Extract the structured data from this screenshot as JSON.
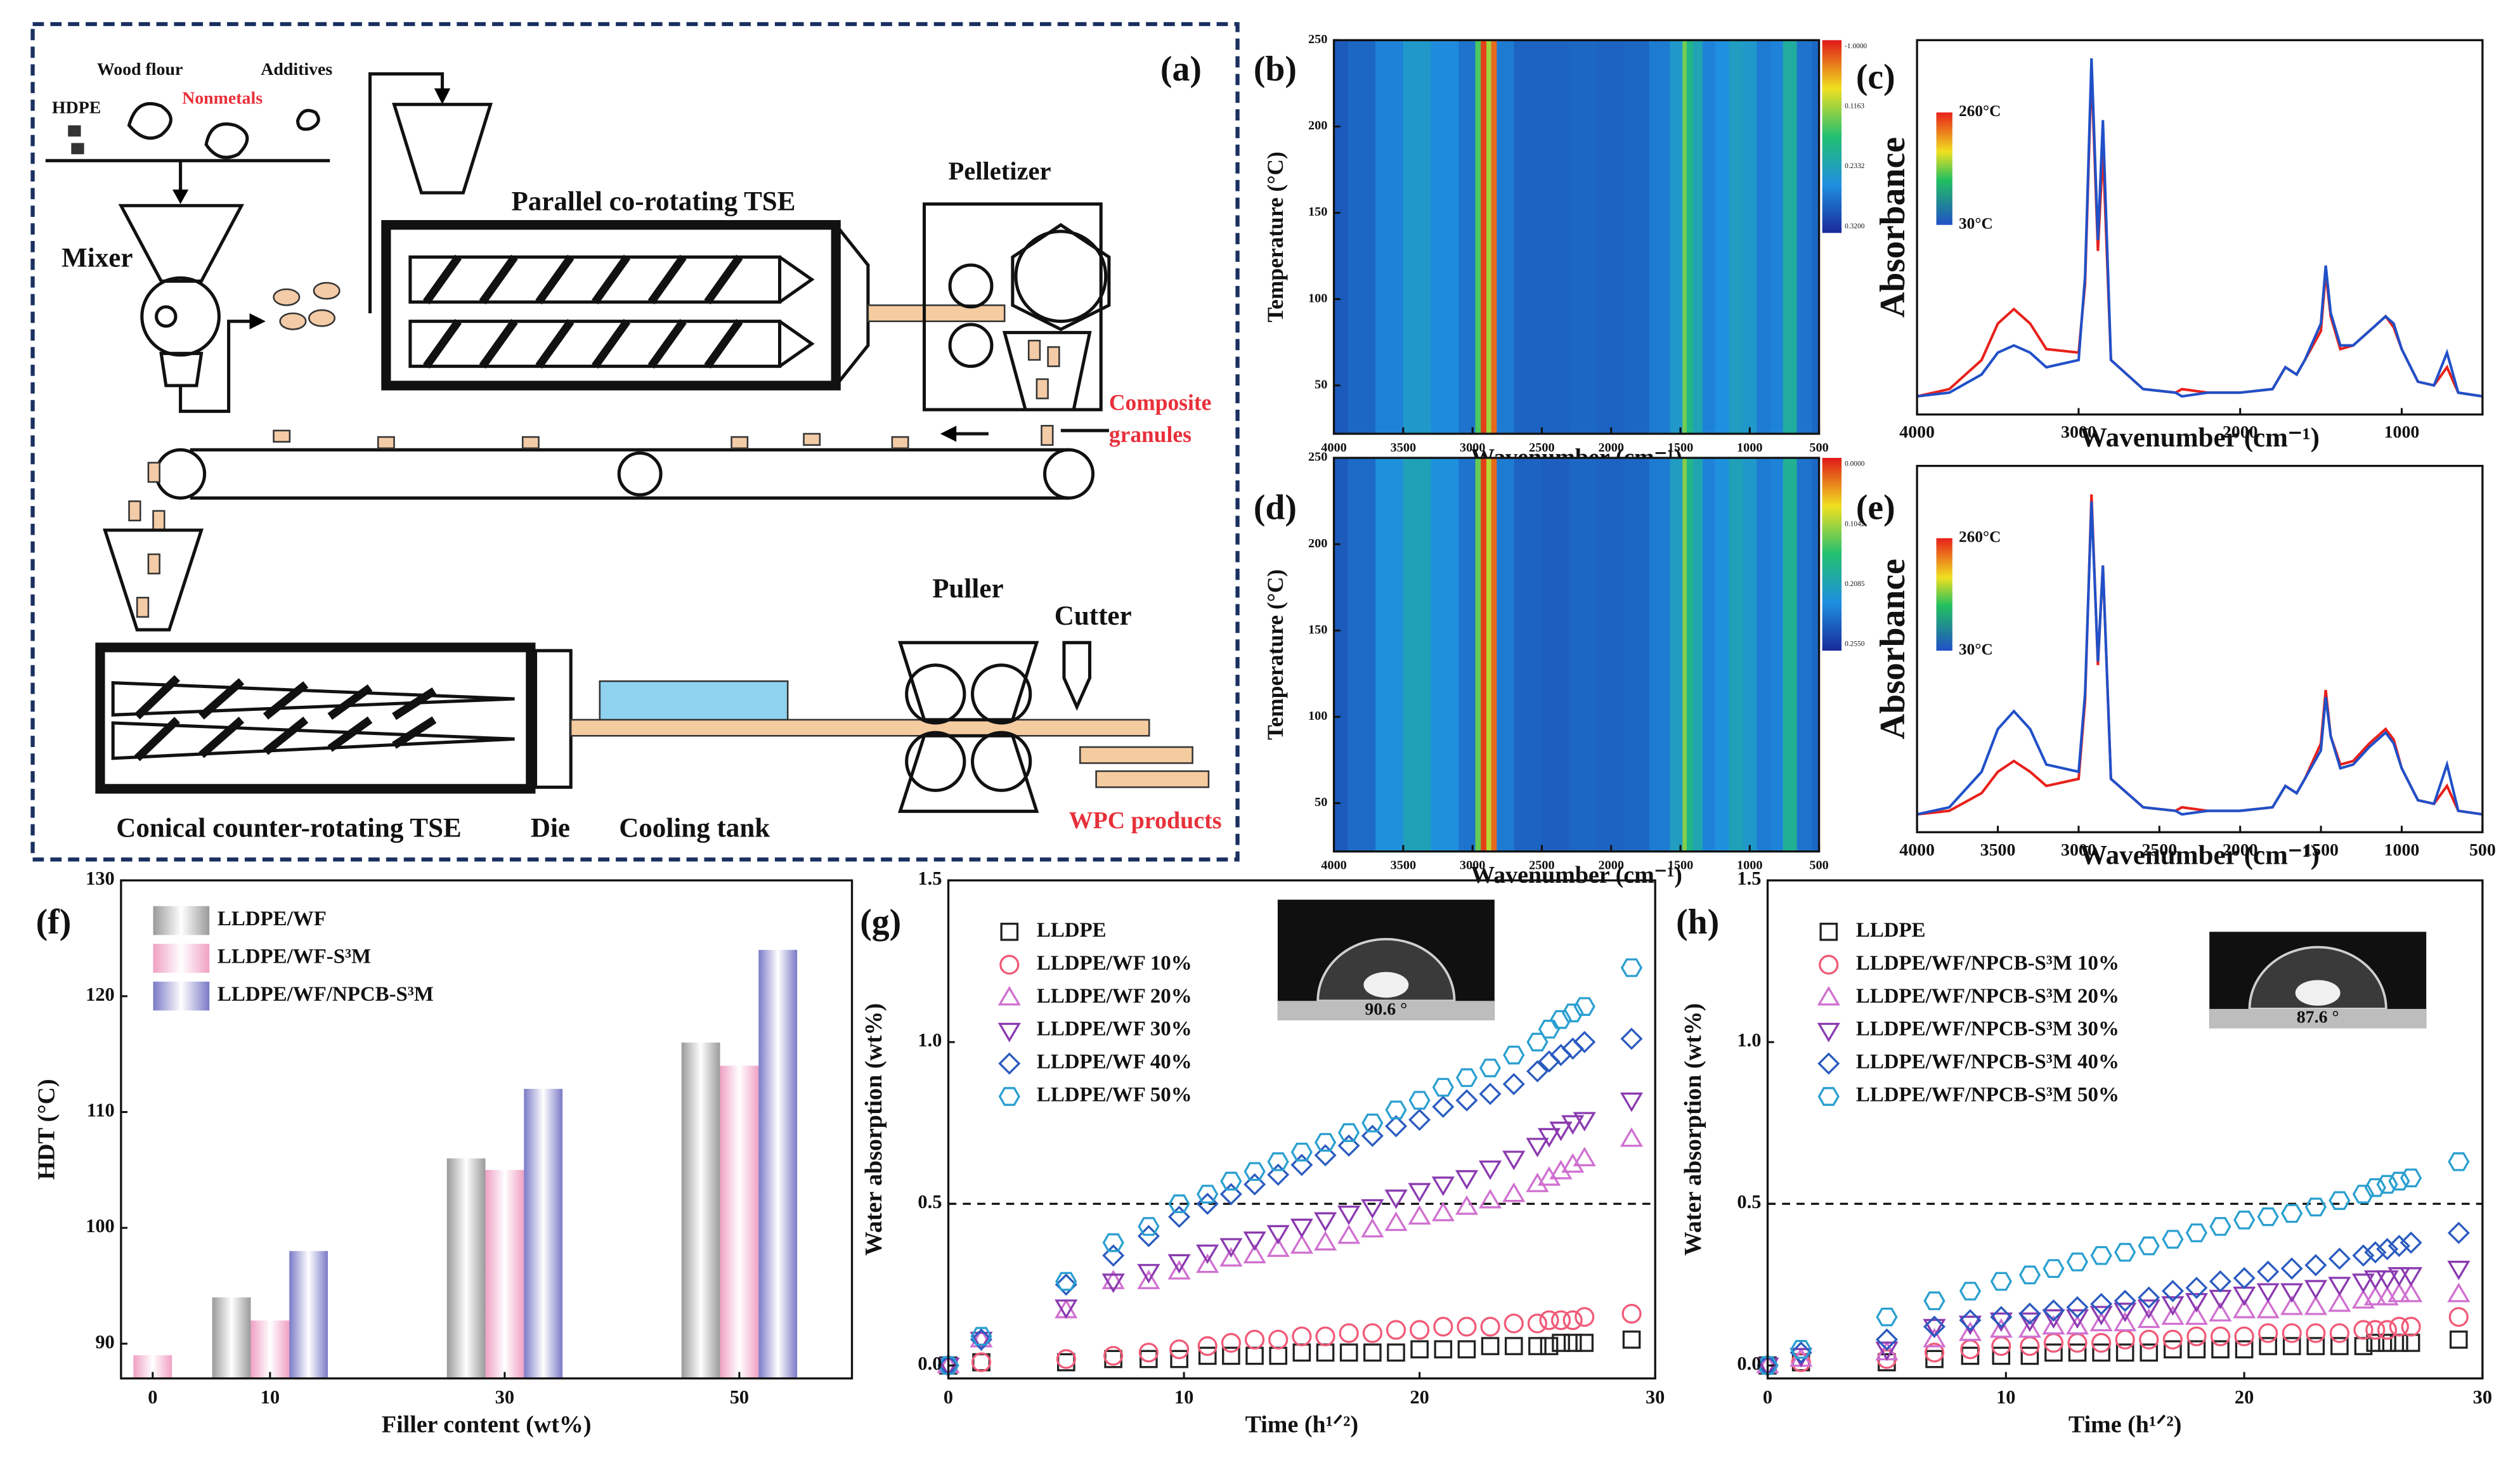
{
  "diagram": {
    "label": "(a)",
    "labels": [
      "HDPE",
      "Wood flour",
      "Nonmetals",
      "Additives",
      "Mixer",
      "Parallel co-rotating TSE",
      "Pelletizer",
      "Composite",
      "granules",
      "Conical counter-rotating TSE",
      "Die",
      "Cooling tank",
      "Puller",
      "Cutter",
      "WPC products"
    ]
  },
  "chart_data": [
    {
      "type": "heatmap",
      "label": "(b)",
      "xlabel": "Wavenumber (cm⁻¹)",
      "ylabel": "Temperature (°C)",
      "x": [
        4000,
        3800,
        3600,
        3400,
        3200,
        3000,
        2960,
        2920,
        2880,
        2850,
        2800,
        2600,
        2400,
        2200,
        2000,
        1800,
        1650,
        1500,
        1470,
        1440,
        1380,
        1300,
        1200,
        1100,
        1000,
        900,
        800,
        720,
        600,
        500
      ],
      "values": [
        0.12,
        0.15,
        0.22,
        0.3,
        0.24,
        0.18,
        0.55,
        0.95,
        0.65,
        0.9,
        0.2,
        0.14,
        0.14,
        0.15,
        0.14,
        0.15,
        0.2,
        0.3,
        0.6,
        0.45,
        0.35,
        0.22,
        0.25,
        0.32,
        0.3,
        0.2,
        0.22,
        0.4,
        0.18,
        0.15
      ],
      "zlim": [
        0,
        1
      ],
      "colorscale": [
        "#1a2a9a",
        "#1f8fe0",
        "#22c070",
        "#f0e020",
        "#e01818"
      ],
      "colorbar_labels": [
        "-1.0000",
        "0.1163",
        "0.2332",
        "0.3200"
      ],
      "xlim": [
        4000,
        500
      ],
      "xticks": [
        4000,
        3500,
        3000,
        2500,
        2000,
        1500,
        1000,
        500
      ],
      "ylim": [
        22,
        250
      ],
      "yticks": [
        50,
        100,
        150,
        200,
        250
      ]
    },
    {
      "type": "line",
      "label": "(c)",
      "xlabel": "Wavenumber (cm⁻¹)",
      "ylabel": "Absorbance",
      "x": [
        4000,
        3800,
        3600,
        3500,
        3400,
        3300,
        3200,
        3000,
        2960,
        2920,
        2880,
        2850,
        2800,
        2600,
        2400,
        2360,
        2200,
        2000,
        1800,
        1720,
        1650,
        1600,
        1500,
        1470,
        1440,
        1380,
        1300,
        1200,
        1100,
        1050,
        1000,
        900,
        800,
        720,
        650,
        500
      ],
      "series": [
        {
          "name": "260°C",
          "color": "#e8201a",
          "values": [
            0.02,
            0.04,
            0.12,
            0.22,
            0.26,
            0.22,
            0.15,
            0.14,
            0.33,
            0.92,
            0.42,
            0.7,
            0.12,
            0.04,
            0.03,
            0.04,
            0.03,
            0.03,
            0.04,
            0.1,
            0.08,
            0.12,
            0.2,
            0.36,
            0.24,
            0.15,
            0.16,
            0.2,
            0.24,
            0.21,
            0.15,
            0.06,
            0.05,
            0.1,
            0.03,
            0.02
          ]
        },
        {
          "name": "30°C",
          "color": "#2050c8",
          "values": [
            0.02,
            0.03,
            0.08,
            0.14,
            0.16,
            0.14,
            0.1,
            0.12,
            0.35,
            0.95,
            0.45,
            0.78,
            0.12,
            0.04,
            0.03,
            0.02,
            0.03,
            0.03,
            0.04,
            0.1,
            0.08,
            0.12,
            0.22,
            0.38,
            0.25,
            0.16,
            0.16,
            0.2,
            0.24,
            0.22,
            0.15,
            0.06,
            0.05,
            0.14,
            0.03,
            0.02
          ]
        }
      ],
      "xlim": [
        4000,
        500
      ],
      "xticks": [
        4000,
        3000,
        2000,
        1000
      ],
      "ylim": [
        -0.03,
        1.0
      ]
    },
    {
      "type": "heatmap",
      "label": "(d)",
      "xlabel": "Wavenumber (cm⁻¹)",
      "ylabel": "Temperature (°C)",
      "x": [
        4000,
        3800,
        3600,
        3400,
        3200,
        3000,
        2960,
        2920,
        2880,
        2850,
        2800,
        2600,
        2400,
        2200,
        2000,
        1800,
        1650,
        1500,
        1470,
        1440,
        1380,
        1300,
        1200,
        1100,
        1000,
        900,
        800,
        720,
        600,
        500
      ],
      "values": [
        0.12,
        0.16,
        0.26,
        0.34,
        0.26,
        0.18,
        0.58,
        0.95,
        0.68,
        0.9,
        0.2,
        0.14,
        0.13,
        0.15,
        0.14,
        0.15,
        0.2,
        0.32,
        0.62,
        0.45,
        0.36,
        0.22,
        0.26,
        0.34,
        0.3,
        0.2,
        0.22,
        0.42,
        0.18,
        0.15
      ],
      "zlim": [
        0,
        1
      ],
      "colorscale": [
        "#1a2a9a",
        "#1f8fe0",
        "#22c070",
        "#f0e020",
        "#e01818"
      ],
      "colorbar_labels": [
        "0.0000",
        "0.1042",
        "0.2085",
        "0.2550"
      ],
      "xlim": [
        4000,
        500
      ],
      "xticks": [
        4000,
        3500,
        3000,
        2500,
        2000,
        1500,
        1000,
        500
      ],
      "ylim": [
        22,
        250
      ],
      "yticks": [
        50,
        100,
        150,
        200,
        250
      ]
    },
    {
      "type": "line",
      "label": "(e)",
      "xlabel": "Wavenumber (cm⁻¹)",
      "ylabel": "Absorbance",
      "x": [
        4000,
        3800,
        3600,
        3500,
        3400,
        3300,
        3200,
        3000,
        2960,
        2920,
        2880,
        2850,
        2800,
        2600,
        2400,
        2360,
        2200,
        2000,
        1800,
        1720,
        1650,
        1600,
        1500,
        1470,
        1440,
        1380,
        1300,
        1200,
        1100,
        1050,
        1000,
        900,
        800,
        720,
        650,
        500
      ],
      "series": [
        {
          "name": "260°C",
          "color": "#e8201a",
          "values": [
            0.02,
            0.03,
            0.08,
            0.14,
            0.17,
            0.14,
            0.1,
            0.12,
            0.34,
            0.92,
            0.44,
            0.72,
            0.12,
            0.04,
            0.03,
            0.04,
            0.03,
            0.03,
            0.04,
            0.1,
            0.08,
            0.12,
            0.22,
            0.37,
            0.24,
            0.16,
            0.17,
            0.22,
            0.26,
            0.23,
            0.15,
            0.06,
            0.05,
            0.1,
            0.03,
            0.02
          ]
        },
        {
          "name": "30°C",
          "color": "#2050c8",
          "values": [
            0.02,
            0.04,
            0.14,
            0.26,
            0.31,
            0.26,
            0.16,
            0.14,
            0.36,
            0.9,
            0.45,
            0.72,
            0.12,
            0.04,
            0.03,
            0.02,
            0.03,
            0.03,
            0.04,
            0.1,
            0.08,
            0.12,
            0.2,
            0.35,
            0.24,
            0.15,
            0.16,
            0.21,
            0.25,
            0.22,
            0.15,
            0.06,
            0.05,
            0.16,
            0.03,
            0.02
          ]
        }
      ],
      "xlim": [
        4000,
        500
      ],
      "xticks": [
        4000,
        3500,
        3000,
        2500,
        2000,
        1500,
        1000,
        500
      ],
      "ylim": [
        -0.03,
        1.0
      ]
    },
    {
      "type": "bar",
      "label": "(f)",
      "xlabel": "Filler content (wt%)",
      "ylabel": "HDT (°C)",
      "x": [
        0,
        10,
        30,
        50
      ],
      "series": [
        {
          "name": "LLDPE/WF",
          "color": "#9a9a9a",
          "values": [
            null,
            94,
            106,
            116
          ]
        },
        {
          "name": "LLDPE/WF-S³M",
          "color": "#f0a0c4",
          "values": [
            89,
            92,
            105,
            114
          ]
        },
        {
          "name": "LLDPE/WF/NPCB-S³M",
          "color": "#7a7ac8",
          "values": [
            null,
            98,
            112,
            124
          ]
        }
      ],
      "xlim": [
        -2.7,
        59.6
      ],
      "xticks": [
        0,
        10,
        30,
        50
      ],
      "ylim": [
        87,
        130
      ],
      "yticks": [
        90,
        100,
        110,
        120,
        130
      ],
      "legend": "upper left"
    },
    {
      "type": "scatter",
      "label": "(g)",
      "xlabel": "Time (h¹ᐟ²)",
      "ylabel": "Water absorption (wt%)",
      "annotation": "90.6 °",
      "hline": 0.5,
      "x": [
        0,
        1.4,
        5,
        7,
        8.5,
        9.8,
        11,
        12,
        13,
        14,
        15,
        16,
        17,
        18,
        19,
        20,
        21,
        22,
        23,
        24,
        25,
        25.5,
        26,
        26.5,
        27,
        29
      ],
      "series": [
        {
          "name": "LLDPE",
          "color": "#222222",
          "marker": "square",
          "values": [
            0,
            0.01,
            0.01,
            0.02,
            0.02,
            0.02,
            0.03,
            0.03,
            0.03,
            0.03,
            0.04,
            0.04,
            0.04,
            0.04,
            0.04,
            0.05,
            0.05,
            0.05,
            0.06,
            0.06,
            0.06,
            0.06,
            0.07,
            0.07,
            0.07,
            0.08
          ]
        },
        {
          "name": "LLDPE/WF 10%",
          "color": "#f05a78",
          "marker": "circle",
          "values": [
            0,
            0.01,
            0.02,
            0.03,
            0.04,
            0.05,
            0.06,
            0.07,
            0.08,
            0.08,
            0.09,
            0.09,
            0.1,
            0.1,
            0.11,
            0.11,
            0.12,
            0.12,
            0.12,
            0.13,
            0.13,
            0.14,
            0.14,
            0.14,
            0.15,
            0.16
          ]
        },
        {
          "name": "LLDPE/WF 20%",
          "color": "#d070d0",
          "marker": "triangle-up",
          "values": [
            0,
            0.08,
            0.17,
            0.26,
            0.26,
            0.29,
            0.31,
            0.33,
            0.34,
            0.36,
            0.37,
            0.38,
            0.4,
            0.42,
            0.44,
            0.46,
            0.47,
            0.49,
            0.51,
            0.53,
            0.56,
            0.58,
            0.6,
            0.62,
            0.64,
            0.7
          ]
        },
        {
          "name": "LLDPE/WF 30%",
          "color": "#8a3ab0",
          "marker": "triangle-down",
          "values": [
            0,
            0.08,
            0.18,
            0.26,
            0.29,
            0.32,
            0.35,
            0.37,
            0.39,
            0.41,
            0.43,
            0.45,
            0.47,
            0.49,
            0.52,
            0.54,
            0.56,
            0.58,
            0.61,
            0.64,
            0.68,
            0.71,
            0.73,
            0.75,
            0.76,
            0.82
          ]
        },
        {
          "name": "LLDPE/WF 40%",
          "color": "#2a5bbf",
          "marker": "diamond",
          "values": [
            0,
            0.08,
            0.25,
            0.34,
            0.4,
            0.46,
            0.5,
            0.53,
            0.56,
            0.59,
            0.62,
            0.65,
            0.68,
            0.71,
            0.74,
            0.76,
            0.8,
            0.82,
            0.84,
            0.87,
            0.91,
            0.94,
            0.96,
            0.98,
            1.0,
            1.01
          ]
        },
        {
          "name": "LLDPE/WF 50%",
          "color": "#2a9fd0",
          "marker": "hexagon",
          "values": [
            0,
            0.09,
            0.26,
            0.38,
            0.43,
            0.5,
            0.53,
            0.57,
            0.6,
            0.63,
            0.66,
            0.69,
            0.72,
            0.75,
            0.79,
            0.82,
            0.86,
            0.89,
            0.92,
            0.96,
            1.0,
            1.04,
            1.07,
            1.09,
            1.11,
            1.23
          ]
        }
      ],
      "xlim": [
        0,
        30
      ],
      "xticks": [
        0,
        10,
        20,
        30
      ],
      "ylim": [
        -0.04,
        1.5
      ],
      "yticks": [
        {
          "value": 0,
          "label": "0.0"
        },
        0.5,
        {
          "value": 1,
          "label": "1.0"
        },
        1.5
      ],
      "legend": "upper left"
    },
    {
      "type": "scatter",
      "label": "(h)",
      "xlabel": "Time (h¹ᐟ²)",
      "ylabel": "Water absorption (wt%)",
      "annotation": "87.6 °",
      "hline": 0.5,
      "x": [
        0,
        1.4,
        5,
        7,
        8.5,
        9.8,
        11,
        12,
        13,
        14,
        15,
        16,
        17,
        18,
        19,
        20,
        21,
        22,
        23,
        24,
        25,
        25.5,
        26,
        26.5,
        27,
        29
      ],
      "series": [
        {
          "name": "LLDPE",
          "color": "#222222",
          "marker": "square",
          "values": [
            0,
            0.01,
            0.01,
            0.02,
            0.03,
            0.03,
            0.03,
            0.04,
            0.04,
            0.04,
            0.04,
            0.04,
            0.05,
            0.05,
            0.05,
            0.05,
            0.06,
            0.06,
            0.06,
            0.06,
            0.06,
            0.07,
            0.07,
            0.07,
            0.07,
            0.08
          ]
        },
        {
          "name": "LLDPE/WF/NPCB-S³M 10%",
          "color": "#f05a78",
          "marker": "circle",
          "values": [
            0,
            0.01,
            0.02,
            0.04,
            0.05,
            0.06,
            0.06,
            0.07,
            0.07,
            0.07,
            0.08,
            0.08,
            0.08,
            0.09,
            0.09,
            0.09,
            0.1,
            0.1,
            0.1,
            0.1,
            0.11,
            0.11,
            0.11,
            0.12,
            0.12,
            0.15
          ]
        },
        {
          "name": "LLDPE/WF/NPCB-S³M 20%",
          "color": "#d070d0",
          "marker": "triangle-up",
          "values": [
            0,
            0.02,
            0.04,
            0.08,
            0.1,
            0.11,
            0.11,
            0.12,
            0.12,
            0.13,
            0.13,
            0.14,
            0.15,
            0.15,
            0.16,
            0.17,
            0.17,
            0.18,
            0.18,
            0.19,
            0.2,
            0.21,
            0.21,
            0.22,
            0.22,
            0.22
          ]
        },
        {
          "name": "LLDPE/WF/NPCB-S³M 30%",
          "color": "#8a3ab0",
          "marker": "triangle-down",
          "values": [
            0,
            0.03,
            0.05,
            0.12,
            0.13,
            0.14,
            0.14,
            0.15,
            0.15,
            0.16,
            0.17,
            0.18,
            0.19,
            0.2,
            0.21,
            0.22,
            0.23,
            0.23,
            0.24,
            0.25,
            0.26,
            0.27,
            0.27,
            0.28,
            0.28,
            0.3
          ]
        },
        {
          "name": "LLDPE/WF/NPCB-S³M 40%",
          "color": "#2a5bbf",
          "marker": "diamond",
          "values": [
            0,
            0.04,
            0.08,
            0.12,
            0.14,
            0.15,
            0.16,
            0.17,
            0.18,
            0.19,
            0.2,
            0.21,
            0.23,
            0.24,
            0.26,
            0.27,
            0.29,
            0.3,
            0.31,
            0.33,
            0.34,
            0.35,
            0.36,
            0.37,
            0.38,
            0.41
          ]
        },
        {
          "name": "LLDPE/WF/NPCB-S³M 50%",
          "color": "#2a9fd0",
          "marker": "hexagon",
          "values": [
            0,
            0.05,
            0.15,
            0.2,
            0.23,
            0.26,
            0.28,
            0.3,
            0.32,
            0.34,
            0.35,
            0.37,
            0.39,
            0.41,
            0.43,
            0.45,
            0.46,
            0.47,
            0.49,
            0.51,
            0.53,
            0.55,
            0.56,
            0.57,
            0.58,
            0.63
          ]
        }
      ],
      "xlim": [
        0,
        30
      ],
      "xticks": [
        0,
        10,
        20,
        30
      ],
      "ylim": [
        -0.04,
        1.5
      ],
      "yticks": [
        {
          "value": 0,
          "label": "0.0"
        },
        0.5,
        {
          "value": 1,
          "label": "1.0"
        },
        1.5
      ],
      "legend": "upper left"
    }
  ]
}
